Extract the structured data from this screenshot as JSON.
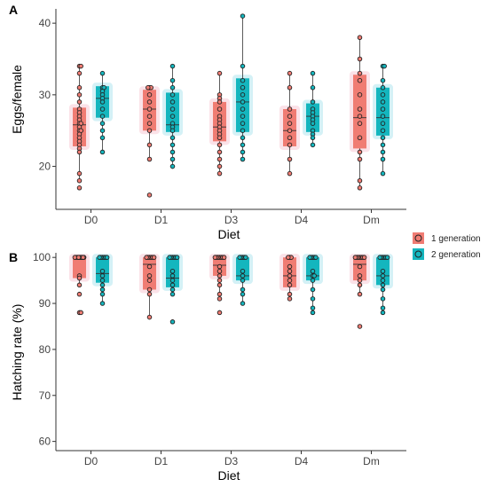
{
  "colors": {
    "gen1_fill": "#F07C73",
    "gen2_fill": "#14B6BE",
    "gen1_halo": "#FBE2E8",
    "gen2_halo": "#D4F1F6",
    "axis": "#333333"
  },
  "legend": {
    "placement": "right",
    "items": [
      {
        "label": "1 generation",
        "color": "#F07C73"
      },
      {
        "label": "2 generation",
        "color": "#14B6BE"
      }
    ]
  },
  "chart_data": [
    {
      "type": "box",
      "panel_label": "A",
      "xlabel": "Diet",
      "ylabel": "Eggs/female",
      "categories": [
        "D0",
        "D1",
        "D3",
        "D4",
        "Dm"
      ],
      "ylim": [
        14,
        42
      ],
      "yticks": [
        20,
        30,
        40
      ],
      "grid": false,
      "series": [
        {
          "name": "1 generation",
          "boxes": [
            {
              "category": "D0",
              "q1": 22.8,
              "median": 25.8,
              "q3": 28.2,
              "whisker_low": 18.3,
              "whisker_high": 34,
              "points": [
                34,
                34,
                33,
                31,
                30,
                29,
                28,
                27.5,
                27,
                26.5,
                26,
                26,
                25.5,
                25,
                25,
                24.5,
                24,
                23.5,
                23,
                22.5,
                22,
                19,
                18,
                17
              ]
            },
            {
              "category": "D1",
              "q1": 25,
              "median": 28,
              "q3": 30.7,
              "whisker_low": 21,
              "whisker_high": 31,
              "points": [
                31,
                31,
                31,
                30,
                29,
                28,
                27,
                26,
                25,
                23,
                21,
                16
              ]
            },
            {
              "category": "D3",
              "q1": 23.5,
              "median": 25.5,
              "q3": 29,
              "whisker_low": 19,
              "whisker_high": 33,
              "points": [
                33,
                30,
                29.5,
                29,
                28,
                27,
                26.5,
                26,
                25.5,
                25,
                24.5,
                24,
                23,
                22,
                21,
                20,
                19
              ]
            },
            {
              "category": "D4",
              "q1": 22.8,
              "median": 25,
              "q3": 28,
              "whisker_low": 19,
              "whisker_high": 33,
              "points": [
                33,
                31,
                28,
                27,
                26,
                25,
                24,
                23,
                21,
                19
              ]
            },
            {
              "category": "Dm",
              "q1": 22.5,
              "median": 26.8,
              "q3": 32.8,
              "whisker_low": 17,
              "whisker_high": 38,
              "points": [
                38,
                35,
                33,
                32,
                30,
                28,
                27,
                26,
                24,
                22,
                21,
                18,
                17
              ]
            }
          ]
        },
        {
          "name": "2 generation",
          "boxes": [
            {
              "category": "D0",
              "q1": 26.8,
              "median": 29.5,
              "q3": 31.2,
              "whisker_low": 22,
              "whisker_high": 33,
              "points": [
                33,
                31,
                31,
                30.5,
                30,
                29.5,
                29,
                28,
                27,
                26,
                25,
                24,
                22
              ]
            },
            {
              "category": "D1",
              "q1": 24.8,
              "median": 25.8,
              "q3": 30.3,
              "whisker_low": 20,
              "whisker_high": 34,
              "points": [
                34,
                32,
                31,
                30,
                29,
                28,
                27,
                26,
                25.5,
                25,
                24,
                23,
                22,
                21,
                20
              ]
            },
            {
              "category": "D3",
              "q1": 24.8,
              "median": 29,
              "q3": 32.3,
              "whisker_low": 21,
              "whisker_high": 41,
              "points": [
                41,
                34,
                32,
                31,
                30,
                29,
                28,
                27,
                26,
                25,
                24,
                23,
                22,
                21
              ]
            },
            {
              "category": "D4",
              "q1": 24.8,
              "median": 27,
              "q3": 28.8,
              "whisker_low": 23,
              "whisker_high": 33,
              "points": [
                33,
                31,
                29,
                28,
                27.5,
                27,
                26.5,
                26,
                25,
                24.5,
                24,
                23
              ]
            },
            {
              "category": "Dm",
              "q1": 24.3,
              "median": 26.8,
              "q3": 31,
              "whisker_low": 19,
              "whisker_high": 34,
              "points": [
                34,
                34,
                32,
                31,
                30,
                29,
                28,
                27,
                26,
                25,
                24,
                23,
                22,
                21,
                19
              ]
            }
          ]
        }
      ]
    },
    {
      "type": "box",
      "panel_label": "B",
      "xlabel": "Diet",
      "ylabel": "Hatching rate (%)",
      "categories": [
        "D0",
        "D1",
        "D3",
        "D4",
        "Dm"
      ],
      "ylim": [
        58,
        101
      ],
      "yticks": [
        60,
        70,
        80,
        90,
        100
      ],
      "grid": false,
      "series": [
        {
          "name": "1 generation",
          "boxes": [
            {
              "category": "D0",
              "q1": 95.5,
              "median": 100,
              "q3": 100,
              "whisker_low": 94,
              "whisker_high": 100,
              "points": [
                100,
                100,
                100,
                100,
                100,
                100,
                100,
                100,
                100,
                100,
                100,
                96,
                95.5,
                94,
                92,
                88,
                88
              ]
            },
            {
              "category": "D1",
              "q1": 93,
              "median": 98.5,
              "q3": 100,
              "whisker_low": 87,
              "whisker_high": 100,
              "points": [
                100,
                100,
                100,
                100,
                100,
                100,
                98,
                96,
                95,
                93,
                92,
                87
              ]
            },
            {
              "category": "D3",
              "q1": 96,
              "median": 98.3,
              "q3": 100,
              "whisker_low": 92,
              "whisker_high": 100,
              "points": [
                100,
                100,
                100,
                100,
                100,
                100,
                100,
                98,
                97,
                96,
                95,
                94,
                92,
                91,
                88
              ]
            },
            {
              "category": "D4",
              "q1": 93.5,
              "median": 96,
              "q3": 100,
              "whisker_low": 91,
              "whisker_high": 100,
              "points": [
                100,
                100,
                100,
                98,
                97,
                96,
                95,
                94,
                92,
                91
              ]
            },
            {
              "category": "Dm",
              "q1": 95,
              "median": 98.5,
              "q3": 100,
              "whisker_low": 92,
              "whisker_high": 100,
              "points": [
                100,
                100,
                100,
                100,
                100,
                100,
                100,
                98,
                96,
                95,
                94,
                92,
                85
              ]
            }
          ]
        },
        {
          "name": "2 generation",
          "boxes": [
            {
              "category": "D0",
              "q1": 94.5,
              "median": 96.5,
              "q3": 100,
              "whisker_low": 90,
              "whisker_high": 100,
              "points": [
                100,
                100,
                100,
                100,
                100,
                100,
                97,
                96,
                95,
                94,
                93,
                92,
                90
              ]
            },
            {
              "category": "D1",
              "q1": 93.5,
              "median": 95.5,
              "q3": 100,
              "whisker_low": 92,
              "whisker_high": 100,
              "points": [
                100,
                100,
                100,
                100,
                100,
                100,
                97,
                96,
                95,
                94,
                93,
                92,
                86
              ]
            },
            {
              "category": "D3",
              "q1": 95,
              "median": 96,
              "q3": 100,
              "whisker_low": 90,
              "whisker_high": 100,
              "points": [
                100,
                100,
                100,
                100,
                100,
                97,
                96,
                95,
                93,
                92,
                90
              ]
            },
            {
              "category": "D4",
              "q1": 95,
              "median": 96,
              "q3": 100,
              "whisker_low": 88,
              "whisker_high": 100,
              "points": [
                100,
                100,
                100,
                100,
                100,
                97,
                96,
                96,
                95,
                93,
                91,
                89,
                88
              ]
            },
            {
              "category": "Dm",
              "q1": 94,
              "median": 96,
              "q3": 100,
              "whisker_low": 89,
              "whisker_high": 100,
              "points": [
                100,
                100,
                100,
                100,
                100,
                100,
                97,
                96,
                95,
                94,
                93,
                91,
                89,
                88
              ]
            }
          ]
        }
      ]
    }
  ]
}
